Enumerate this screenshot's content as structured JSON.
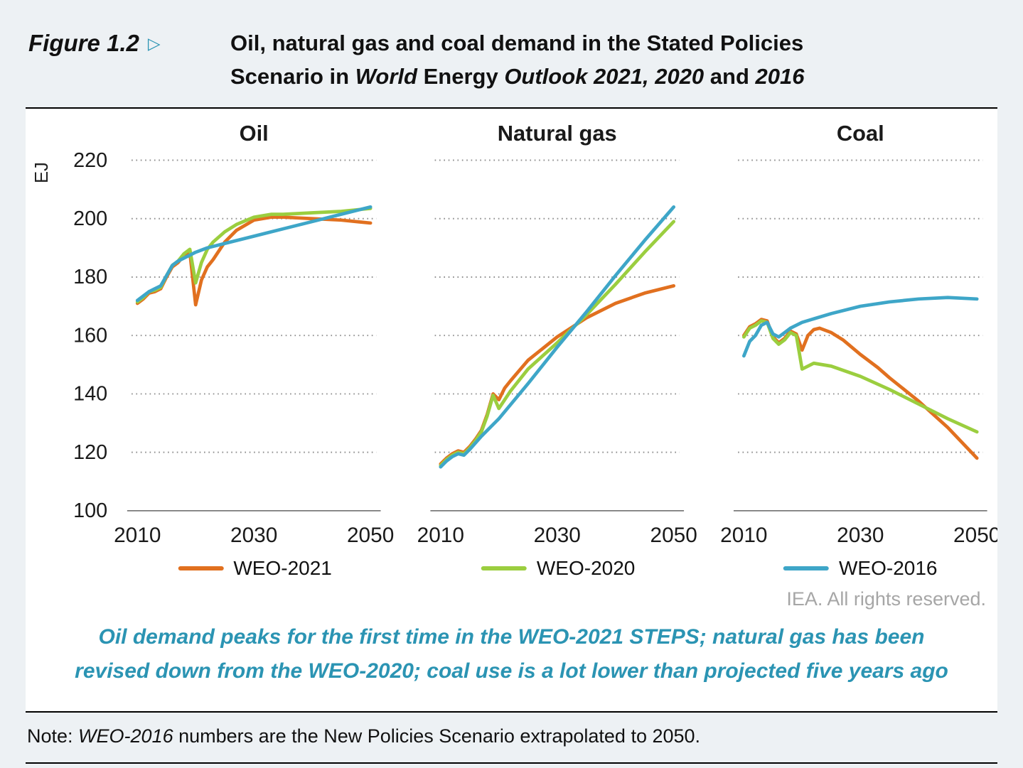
{
  "header": {
    "figure_label": "Figure 1.2",
    "arrow": "▷",
    "title_parts": [
      {
        "text": "Oil, natural gas and coal demand in the Stated Policies",
        "italic": false,
        "break_after": true
      },
      {
        "text": "Scenario in ",
        "italic": false
      },
      {
        "text": "World",
        "italic": true
      },
      {
        "text": " Energy ",
        "italic": false
      },
      {
        "text": "Outlook 2021, 2020",
        "italic": true
      },
      {
        "text": " and ",
        "italic": false
      },
      {
        "text": "2016",
        "italic": true
      }
    ]
  },
  "colors": {
    "background": "#edf1f4",
    "accent_teal": "#2b94b3",
    "subtitle_teal": "#2b94b3",
    "grid_gray": "#8f8f8f",
    "axis_gray": "#7a7a7a",
    "copyright_gray": "#a6a6a6"
  },
  "chart_data": {
    "type": "line",
    "unit": "EJ",
    "ylim": [
      100,
      220
    ],
    "yticks": [
      100,
      120,
      140,
      160,
      180,
      200,
      220
    ],
    "xlim": [
      2009,
      2051
    ],
    "xticks": [
      2010,
      2030,
      2050
    ],
    "grid": "dotted-horizontal",
    "legend_position": "bottom",
    "series_meta": [
      {
        "name": "WEO-2021",
        "color": "#e1701f"
      },
      {
        "name": "WEO-2020",
        "color": "#9bce3f"
      },
      {
        "name": "WEO-2016",
        "color": "#3ea6c8"
      }
    ],
    "panels": [
      {
        "title": "Oil",
        "series": [
          {
            "name": "WEO-2021",
            "points": [
              [
                2010,
                171
              ],
              [
                2011,
                172.5
              ],
              [
                2012,
                174.5
              ],
              [
                2013,
                175
              ],
              [
                2014,
                176
              ],
              [
                2015,
                180
              ],
              [
                2016,
                183.5
              ],
              [
                2017,
                185
              ],
              [
                2018,
                187.5
              ],
              [
                2019,
                188.5
              ],
              [
                2020,
                170.5
              ],
              [
                2021,
                179
              ],
              [
                2022,
                183.5
              ],
              [
                2023,
                186
              ],
              [
                2025,
                192
              ],
              [
                2027,
                196
              ],
              [
                2030,
                199.5
              ],
              [
                2033,
                200.5
              ],
              [
                2035,
                200.5
              ],
              [
                2040,
                200
              ],
              [
                2045,
                199.5
              ],
              [
                2050,
                198.5
              ]
            ]
          },
          {
            "name": "WEO-2020",
            "points": [
              [
                2010,
                171.5
              ],
              [
                2011,
                173
              ],
              [
                2012,
                175
              ],
              [
                2013,
                175.5
              ],
              [
                2014,
                176.5
              ],
              [
                2015,
                180.5
              ],
              [
                2016,
                184
              ],
              [
                2017,
                185.5
              ],
              [
                2018,
                188
              ],
              [
                2019,
                189.5
              ],
              [
                2020,
                178
              ],
              [
                2021,
                185
              ],
              [
                2022,
                189.5
              ],
              [
                2023,
                192
              ],
              [
                2025,
                195.5
              ],
              [
                2027,
                198
              ],
              [
                2030,
                200.5
              ],
              [
                2033,
                201.5
              ],
              [
                2035,
                201.5
              ],
              [
                2040,
                202
              ],
              [
                2045,
                202.5
              ],
              [
                2050,
                203.5
              ]
            ]
          },
          {
            "name": "WEO-2016",
            "points": [
              [
                2010,
                172
              ],
              [
                2011,
                173.5
              ],
              [
                2012,
                175
              ],
              [
                2013,
                176
              ],
              [
                2014,
                177
              ],
              [
                2015,
                180.5
              ],
              [
                2016,
                184
              ],
              [
                2017,
                185.5
              ],
              [
                2018,
                186.5
              ],
              [
                2019,
                187.5
              ],
              [
                2020,
                188.5
              ],
              [
                2022,
                190
              ],
              [
                2025,
                191.5
              ],
              [
                2030,
                194
              ],
              [
                2035,
                196.5
              ],
              [
                2040,
                199
              ],
              [
                2045,
                201.5
              ],
              [
                2050,
                204
              ]
            ]
          }
        ]
      },
      {
        "title": "Natural gas",
        "series": [
          {
            "name": "WEO-2021",
            "points": [
              [
                2010,
                116
              ],
              [
                2011,
                118
              ],
              [
                2012,
                119.5
              ],
              [
                2013,
                120.5
              ],
              [
                2014,
                120
              ],
              [
                2015,
                122
              ],
              [
                2016,
                124.5
              ],
              [
                2017,
                127.5
              ],
              [
                2018,
                133
              ],
              [
                2019,
                140
              ],
              [
                2020,
                138
              ],
              [
                2021,
                142
              ],
              [
                2022,
                144.5
              ],
              [
                2025,
                151.5
              ],
              [
                2030,
                159.5
              ],
              [
                2035,
                166
              ],
              [
                2040,
                171
              ],
              [
                2045,
                174.5
              ],
              [
                2050,
                177
              ]
            ]
          },
          {
            "name": "WEO-2020",
            "points": [
              [
                2010,
                115.5
              ],
              [
                2011,
                117.5
              ],
              [
                2012,
                119
              ],
              [
                2013,
                120
              ],
              [
                2014,
                119.5
              ],
              [
                2015,
                121.5
              ],
              [
                2016,
                124
              ],
              [
                2017,
                127
              ],
              [
                2018,
                132.5
              ],
              [
                2019,
                139.5
              ],
              [
                2020,
                135
              ],
              [
                2021,
                138
              ],
              [
                2022,
                141
              ],
              [
                2025,
                148.5
              ],
              [
                2030,
                157.5
              ],
              [
                2035,
                167
              ],
              [
                2040,
                177.5
              ],
              [
                2045,
                188.5
              ],
              [
                2050,
                199
              ]
            ]
          },
          {
            "name": "WEO-2016",
            "points": [
              [
                2010,
                115
              ],
              [
                2011,
                117
              ],
              [
                2012,
                118.5
              ],
              [
                2013,
                119.5
              ],
              [
                2014,
                119
              ],
              [
                2015,
                121
              ],
              [
                2017,
                125.5
              ],
              [
                2020,
                131.5
              ],
              [
                2025,
                143.5
              ],
              [
                2030,
                156
              ],
              [
                2035,
                168
              ],
              [
                2040,
                180.5
              ],
              [
                2045,
                192.5
              ],
              [
                2050,
                204
              ]
            ]
          }
        ]
      },
      {
        "title": "Coal",
        "series": [
          {
            "name": "WEO-2021",
            "points": [
              [
                2010,
                160
              ],
              [
                2011,
                163
              ],
              [
                2012,
                164
              ],
              [
                2013,
                165.5
              ],
              [
                2014,
                165
              ],
              [
                2015,
                159.5
              ],
              [
                2016,
                157.5
              ],
              [
                2017,
                159
              ],
              [
                2018,
                161.5
              ],
              [
                2019,
                160.5
              ],
              [
                2020,
                155
              ],
              [
                2021,
                160
              ],
              [
                2022,
                162
              ],
              [
                2023,
                162.5
              ],
              [
                2025,
                161
              ],
              [
                2027,
                158.5
              ],
              [
                2030,
                153.5
              ],
              [
                2033,
                149
              ],
              [
                2035,
                145.5
              ],
              [
                2040,
                137.5
              ],
              [
                2045,
                128.5
              ],
              [
                2050,
                118
              ]
            ]
          },
          {
            "name": "WEO-2020",
            "points": [
              [
                2010,
                159.5
              ],
              [
                2011,
                162.5
              ],
              [
                2012,
                163.5
              ],
              [
                2013,
                165
              ],
              [
                2014,
                164.5
              ],
              [
                2015,
                159
              ],
              [
                2016,
                157
              ],
              [
                2017,
                158.5
              ],
              [
                2018,
                161
              ],
              [
                2019,
                160
              ],
              [
                2020,
                148.5
              ],
              [
                2021,
                149.5
              ],
              [
                2022,
                150.5
              ],
              [
                2025,
                149.5
              ],
              [
                2030,
                146
              ],
              [
                2035,
                141.5
              ],
              [
                2040,
                136.5
              ],
              [
                2045,
                131.5
              ],
              [
                2050,
                127
              ]
            ]
          },
          {
            "name": "WEO-2016",
            "points": [
              [
                2010,
                153
              ],
              [
                2011,
                158
              ],
              [
                2012,
                160
              ],
              [
                2013,
                163.5
              ],
              [
                2014,
                164.5
              ],
              [
                2015,
                160.5
              ],
              [
                2016,
                159.5
              ],
              [
                2017,
                161
              ],
              [
                2018,
                162.5
              ],
              [
                2020,
                164.5
              ],
              [
                2025,
                167.5
              ],
              [
                2030,
                170
              ],
              [
                2035,
                171.5
              ],
              [
                2040,
                172.5
              ],
              [
                2045,
                173
              ],
              [
                2050,
                172.5
              ]
            ]
          }
        ]
      }
    ]
  },
  "footer": {
    "copyright": "IEA. All rights reserved.",
    "subtitle_line1": "Oil demand peaks for the first time in the WEO-2021 STEPS; natural gas has been",
    "subtitle_line2": "revised down from the WEO-2020; coal use is a lot lower than projected five years ago",
    "note_parts": [
      {
        "text": "Note: ",
        "italic": false
      },
      {
        "text": "WEO-2016",
        "italic": true
      },
      {
        "text": " numbers are the New Policies Scenario extrapolated to 2050.",
        "italic": false
      }
    ]
  }
}
